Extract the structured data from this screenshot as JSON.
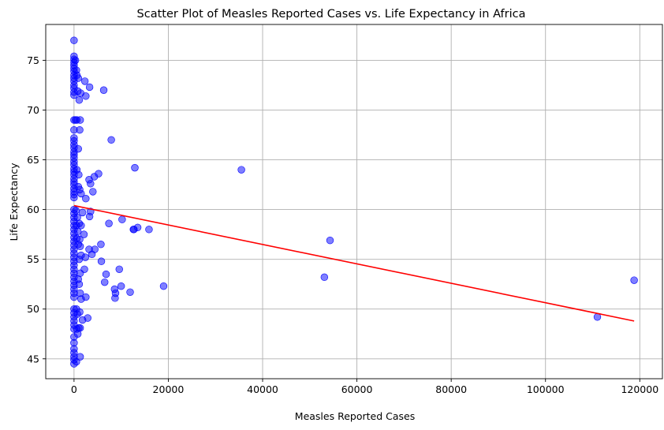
{
  "chart_data": {
    "type": "scatter",
    "title": "Scatter Plot of Measles Reported Cases vs. Life Expectancy in Africa",
    "xlabel": "Measles Reported Cases",
    "ylabel": "Life Expectancy",
    "xlim": [
      -6000,
      124800
    ],
    "ylim": [
      43.0,
      78.6
    ],
    "xticks": [
      0,
      20000,
      40000,
      60000,
      80000,
      100000,
      120000
    ],
    "yticks": [
      45,
      50,
      55,
      60,
      65,
      70,
      75
    ],
    "grid": true,
    "colors": {
      "points": "#0000ff",
      "trend": "#ff0000"
    },
    "series": [
      {
        "points": [
          [
            0,
            77.0
          ],
          [
            0,
            75.4
          ],
          [
            0,
            75.1
          ],
          [
            0,
            74.8
          ],
          [
            0,
            74.5
          ],
          [
            0,
            74.2
          ],
          [
            0,
            73.9
          ],
          [
            0,
            73.5
          ],
          [
            0,
            73.2
          ],
          [
            0,
            72.9
          ],
          [
            0,
            72.5
          ],
          [
            0,
            72.2
          ],
          [
            0,
            71.8
          ],
          [
            0,
            71.5
          ],
          [
            300,
            75.0
          ],
          [
            500,
            74.0
          ],
          [
            600,
            73.5
          ],
          [
            900,
            73.2
          ],
          [
            800,
            71.9
          ],
          [
            1400,
            71.7
          ],
          [
            1100,
            71.0
          ],
          [
            2300,
            72.9
          ],
          [
            2500,
            71.4
          ],
          [
            3300,
            72.3
          ],
          [
            6300,
            72.0
          ],
          [
            0,
            69.0
          ],
          [
            300,
            69.0
          ],
          [
            600,
            69.0
          ],
          [
            1300,
            69.0
          ],
          [
            0,
            68.0
          ],
          [
            1200,
            68.0
          ],
          [
            7900,
            67.0
          ],
          [
            0,
            67.2
          ],
          [
            0,
            66.9
          ],
          [
            0,
            66.5
          ],
          [
            0,
            66.2
          ],
          [
            0,
            65.8
          ],
          [
            0,
            65.5
          ],
          [
            0,
            65.2
          ],
          [
            0,
            64.8
          ],
          [
            0,
            64.5
          ],
          [
            0,
            64.1
          ],
          [
            0,
            63.8
          ],
          [
            0,
            63.5
          ],
          [
            0,
            63.1
          ],
          [
            0,
            62.8
          ],
          [
            0,
            62.5
          ],
          [
            0,
            62.1
          ],
          [
            0,
            61.8
          ],
          [
            0,
            61.5
          ],
          [
            0,
            61.2
          ],
          [
            900,
            66.1
          ],
          [
            600,
            64.0
          ],
          [
            1000,
            63.5
          ],
          [
            900,
            62.3
          ],
          [
            1200,
            62.0
          ],
          [
            1500,
            61.6
          ],
          [
            2500,
            61.1
          ],
          [
            3200,
            63.0
          ],
          [
            3500,
            62.6
          ],
          [
            4000,
            61.8
          ],
          [
            4300,
            63.3
          ],
          [
            5200,
            63.6
          ],
          [
            12900,
            64.2
          ],
          [
            35500,
            64.0
          ],
          [
            0,
            60.0
          ],
          [
            0,
            59.6
          ],
          [
            0,
            59.2
          ],
          [
            0,
            58.8
          ],
          [
            0,
            58.4
          ],
          [
            0,
            58.0
          ],
          [
            0,
            57.6
          ],
          [
            0,
            57.2
          ],
          [
            0,
            56.8
          ],
          [
            0,
            56.4
          ],
          [
            0,
            56.0
          ],
          [
            0,
            55.6
          ],
          [
            0,
            55.2
          ],
          [
            0,
            54.8
          ],
          [
            0,
            54.4
          ],
          [
            0,
            54.0
          ],
          [
            0,
            53.6
          ],
          [
            0,
            53.2
          ],
          [
            0,
            52.8
          ],
          [
            0,
            52.4
          ],
          [
            0,
            52.0
          ],
          [
            0,
            51.6
          ],
          [
            0,
            51.2
          ],
          [
            400,
            59.9
          ],
          [
            700,
            59.2
          ],
          [
            500,
            58.4
          ],
          [
            800,
            57.8
          ],
          [
            600,
            57.1
          ],
          [
            900,
            56.5
          ],
          [
            1100,
            58.6
          ],
          [
            1200,
            57.0
          ],
          [
            1500,
            58.4
          ],
          [
            1300,
            56.3
          ],
          [
            1800,
            59.7
          ],
          [
            2100,
            57.5
          ],
          [
            2400,
            55.2
          ],
          [
            2200,
            54.0
          ],
          [
            1500,
            55.4
          ],
          [
            1100,
            55.0
          ],
          [
            1300,
            53.6
          ],
          [
            900,
            53.0
          ],
          [
            1100,
            52.5
          ],
          [
            1300,
            51.6
          ],
          [
            1500,
            51.0
          ],
          [
            2500,
            51.2
          ],
          [
            3300,
            59.3
          ],
          [
            3500,
            59.8
          ],
          [
            3200,
            56.0
          ],
          [
            3800,
            55.5
          ],
          [
            4400,
            56.0
          ],
          [
            5700,
            56.5
          ],
          [
            5800,
            54.8
          ],
          [
            6800,
            53.5
          ],
          [
            6500,
            52.7
          ],
          [
            7400,
            58.6
          ],
          [
            8700,
            51.1
          ],
          [
            8800,
            51.6
          ],
          [
            8600,
            52.0
          ],
          [
            9600,
            54.0
          ],
          [
            10000,
            52.3
          ],
          [
            10200,
            59.0
          ],
          [
            11900,
            51.7
          ],
          [
            12600,
            58.0
          ],
          [
            12700,
            58.0
          ],
          [
            13500,
            58.2
          ],
          [
            15900,
            58.0
          ],
          [
            19000,
            52.3
          ],
          [
            53100,
            53.2
          ],
          [
            54300,
            56.9
          ],
          [
            118800,
            52.9
          ],
          [
            0,
            50.0
          ],
          [
            0,
            49.6
          ],
          [
            0,
            49.2
          ],
          [
            0,
            48.8
          ],
          [
            0,
            48.4
          ],
          [
            0,
            48.0
          ],
          [
            0,
            47.2
          ],
          [
            0,
            46.6
          ],
          [
            0,
            46.0
          ],
          [
            0,
            45.6
          ],
          [
            0,
            45.2
          ],
          [
            0,
            44.9
          ],
          [
            0,
            44.5
          ],
          [
            500,
            50.0
          ],
          [
            700,
            49.5
          ],
          [
            600,
            48.0
          ],
          [
            800,
            47.5
          ],
          [
            1200,
            49.7
          ],
          [
            1000,
            48.1
          ],
          [
            1300,
            48.1
          ],
          [
            1800,
            48.9
          ],
          [
            2900,
            49.1
          ],
          [
            500,
            44.7
          ],
          [
            1300,
            45.2
          ],
          [
            111000,
            49.2
          ]
        ]
      }
    ],
    "trendline": {
      "x": [
        0,
        118800
      ],
      "y": [
        60.4,
        48.8
      ]
    }
  }
}
